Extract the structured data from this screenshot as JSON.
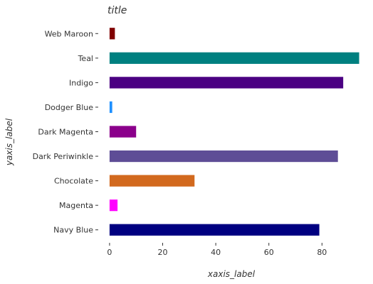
{
  "chart_data": {
    "type": "bar",
    "orientation": "horizontal",
    "title": "title",
    "xlabel": "xaxis_label",
    "ylabel": "yaxis_label",
    "xlim": [
      -4,
      96
    ],
    "xticks": [
      0,
      20,
      40,
      60,
      80
    ],
    "grid": false,
    "categories": [
      "Web Maroon",
      "Teal",
      "Indigo",
      "Dodger Blue",
      "Dark Magenta",
      "Dark Periwinkle",
      "Chocolate",
      "Magenta",
      "Navy Blue"
    ],
    "values": [
      2,
      94,
      88,
      1,
      10,
      86,
      32,
      3,
      79
    ],
    "colors": [
      "#800000",
      "#008080",
      "#4b0082",
      "#1e90ff",
      "#8b008b",
      "#5e4d96",
      "#d2691e",
      "#ff00ff",
      "#000080"
    ]
  }
}
